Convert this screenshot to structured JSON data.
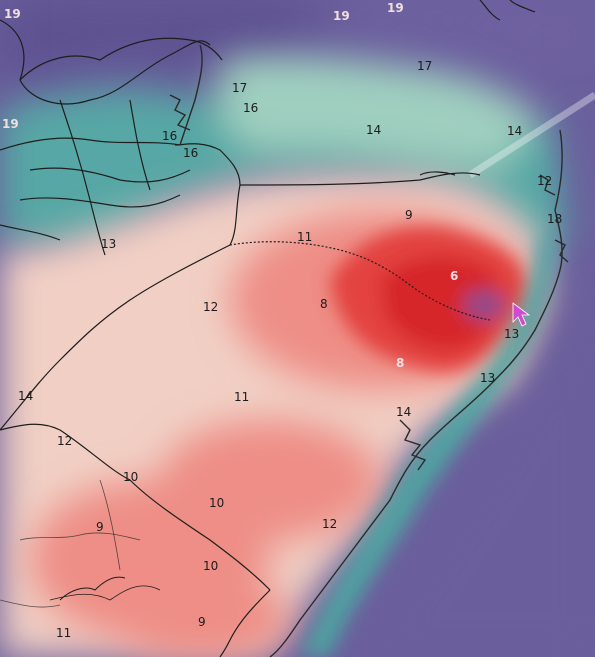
{
  "map": {
    "labels": [
      "19",
      "19",
      "19",
      "19",
      "17",
      "17",
      "16",
      "16",
      "16",
      "14",
      "14",
      "12",
      "18",
      "13",
      "11",
      "9",
      "12",
      "8",
      "6",
      "13",
      "8",
      "13",
      "14",
      "11",
      "14",
      "12",
      "10",
      "10",
      "9",
      "10",
      "12",
      "9",
      "11"
    ]
  },
  "colors": {
    "ocean": "#6a5f9c",
    "ocean_deep": "#5b4f8f",
    "teal": "#57a7a5",
    "teal_light": "#9fcfbf",
    "land_pale": "#f1cfc4",
    "warm": "#ee8e86",
    "hot": "#e3423f",
    "hottest": "#d6262c",
    "purple_core": "#8a4f9a",
    "cursor": "#d14bd1",
    "borders": "#1e1e1e",
    "coast": "#2a2a2a"
  }
}
